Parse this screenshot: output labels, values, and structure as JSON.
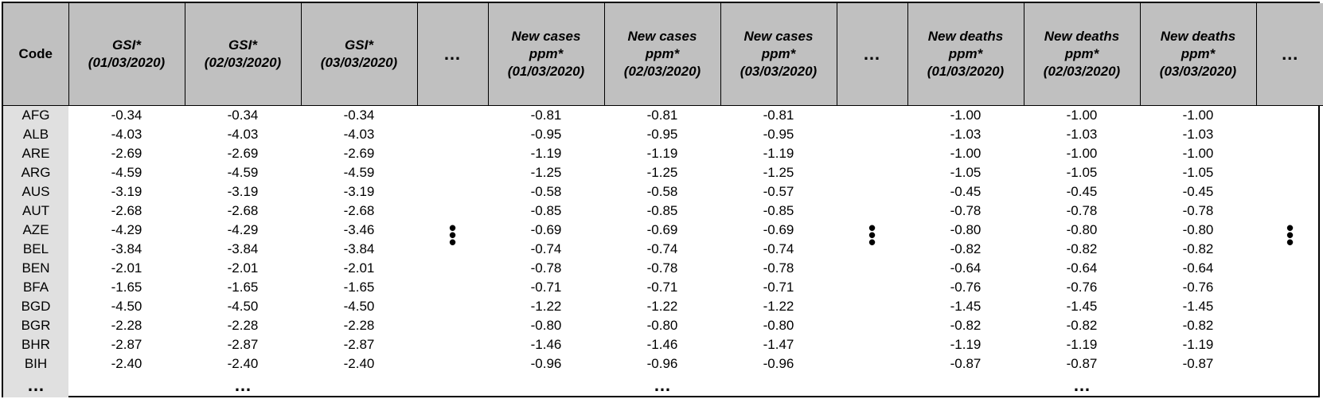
{
  "table": {
    "headers": [
      {
        "name": "Code",
        "date": ""
      },
      {
        "name": "GSI*",
        "date": "(01/03/2020)"
      },
      {
        "name": "GSI*",
        "date": "(02/03/2020)"
      },
      {
        "name": "GSI*",
        "date": "(03/03/2020)"
      },
      {
        "name": "…",
        "date": ""
      },
      {
        "name": "New cases ppm*",
        "date": "(01/03/2020)"
      },
      {
        "name": "New cases ppm*",
        "date": "(02/03/2020)"
      },
      {
        "name": "New cases ppm*",
        "date": "(03/03/2020)"
      },
      {
        "name": "…",
        "date": ""
      },
      {
        "name": "New deaths ppm*",
        "date": "(01/03/2020)"
      },
      {
        "name": "New deaths ppm*",
        "date": "(02/03/2020)"
      },
      {
        "name": "New deaths ppm*",
        "date": "(03/03/2020)"
      },
      {
        "name": "…",
        "date": ""
      }
    ],
    "header_lines": {
      "gsi": "GSI*",
      "new_cases_1": "New cases",
      "new_deaths_1": "New deaths",
      "ppm": "ppm*",
      "d1": "(01/03/2020)",
      "d2": "(02/03/2020)",
      "d3": "(03/03/2020)",
      "code": "Code",
      "ellipsis": "…"
    },
    "rows": [
      {
        "code": "AFG",
        "gsi": [
          "-0.34",
          "-0.34",
          "-0.34"
        ],
        "cases": [
          "-0.81",
          "-0.81",
          "-0.81"
        ],
        "deaths": [
          "-1.00",
          "-1.00",
          "-1.00"
        ]
      },
      {
        "code": "ALB",
        "gsi": [
          "-4.03",
          "-4.03",
          "-4.03"
        ],
        "cases": [
          "-0.95",
          "-0.95",
          "-0.95"
        ],
        "deaths": [
          "-1.03",
          "-1.03",
          "-1.03"
        ]
      },
      {
        "code": "ARE",
        "gsi": [
          "-2.69",
          "-2.69",
          "-2.69"
        ],
        "cases": [
          "-1.19",
          "-1.19",
          "-1.19"
        ],
        "deaths": [
          "-1.00",
          "-1.00",
          "-1.00"
        ]
      },
      {
        "code": "ARG",
        "gsi": [
          "-4.59",
          "-4.59",
          "-4.59"
        ],
        "cases": [
          "-1.25",
          "-1.25",
          "-1.25"
        ],
        "deaths": [
          "-1.05",
          "-1.05",
          "-1.05"
        ]
      },
      {
        "code": "AUS",
        "gsi": [
          "-3.19",
          "-3.19",
          "-3.19"
        ],
        "cases": [
          "-0.58",
          "-0.58",
          "-0.57"
        ],
        "deaths": [
          "-0.45",
          "-0.45",
          "-0.45"
        ]
      },
      {
        "code": "AUT",
        "gsi": [
          "-2.68",
          "-2.68",
          "-2.68"
        ],
        "cases": [
          "-0.85",
          "-0.85",
          "-0.85"
        ],
        "deaths": [
          "-0.78",
          "-0.78",
          "-0.78"
        ]
      },
      {
        "code": "AZE",
        "gsi": [
          "-4.29",
          "-4.29",
          "-3.46"
        ],
        "cases": [
          "-0.69",
          "-0.69",
          "-0.69"
        ],
        "deaths": [
          "-0.80",
          "-0.80",
          "-0.80"
        ]
      },
      {
        "code": "BEL",
        "gsi": [
          "-3.84",
          "-3.84",
          "-3.84"
        ],
        "cases": [
          "-0.74",
          "-0.74",
          "-0.74"
        ],
        "deaths": [
          "-0.82",
          "-0.82",
          "-0.82"
        ]
      },
      {
        "code": "BEN",
        "gsi": [
          "-2.01",
          "-2.01",
          "-2.01"
        ],
        "cases": [
          "-0.78",
          "-0.78",
          "-0.78"
        ],
        "deaths": [
          "-0.64",
          "-0.64",
          "-0.64"
        ]
      },
      {
        "code": "BFA",
        "gsi": [
          "-1.65",
          "-1.65",
          "-1.65"
        ],
        "cases": [
          "-0.71",
          "-0.71",
          "-0.71"
        ],
        "deaths": [
          "-0.76",
          "-0.76",
          "-0.76"
        ]
      },
      {
        "code": "BGD",
        "gsi": [
          "-4.50",
          "-4.50",
          "-4.50"
        ],
        "cases": [
          "-1.22",
          "-1.22",
          "-1.22"
        ],
        "deaths": [
          "-1.45",
          "-1.45",
          "-1.45"
        ]
      },
      {
        "code": "BGR",
        "gsi": [
          "-2.28",
          "-2.28",
          "-2.28"
        ],
        "cases": [
          "-0.80",
          "-0.80",
          "-0.80"
        ],
        "deaths": [
          "-0.82",
          "-0.82",
          "-0.82"
        ]
      },
      {
        "code": "BHR",
        "gsi": [
          "-2.87",
          "-2.87",
          "-2.87"
        ],
        "cases": [
          "-1.46",
          "-1.46",
          "-1.47"
        ],
        "deaths": [
          "-1.19",
          "-1.19",
          "-1.19"
        ]
      },
      {
        "code": "BIH",
        "gsi": [
          "-2.40",
          "-2.40",
          "-2.40"
        ],
        "cases": [
          "-0.96",
          "-0.96",
          "-0.96"
        ],
        "deaths": [
          "-0.87",
          "-0.87",
          "-0.87"
        ]
      }
    ],
    "more_row": "…"
  }
}
